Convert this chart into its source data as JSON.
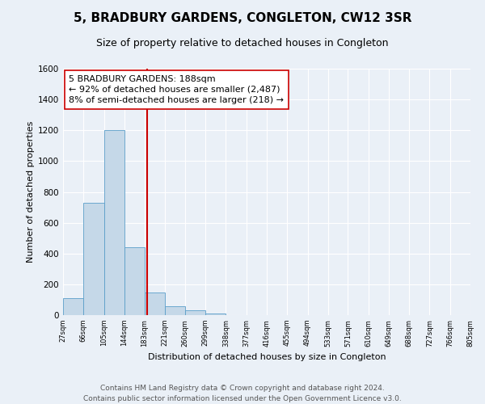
{
  "title": "5, BRADBURY GARDENS, CONGLETON, CW12 3SR",
  "subtitle": "Size of property relative to detached houses in Congleton",
  "xlabel": "Distribution of detached houses by size in Congleton",
  "ylabel": "Number of detached properties",
  "bin_edges": [
    27,
    66,
    105,
    144,
    183,
    221,
    260,
    299,
    338,
    377,
    416,
    455,
    494,
    533,
    571,
    610,
    649,
    688,
    727,
    766,
    805
  ],
  "bin_labels": [
    "27sqm",
    "66sqm",
    "105sqm",
    "144sqm",
    "183sqm",
    "221sqm",
    "260sqm",
    "299sqm",
    "338sqm",
    "377sqm",
    "416sqm",
    "455sqm",
    "494sqm",
    "533sqm",
    "571sqm",
    "610sqm",
    "649sqm",
    "688sqm",
    "727sqm",
    "766sqm",
    "805sqm"
  ],
  "bar_heights": [
    110,
    730,
    1200,
    440,
    145,
    60,
    30,
    10,
    0,
    0,
    0,
    0,
    0,
    0,
    0,
    0,
    0,
    0,
    0,
    0
  ],
  "bar_color": "#c5d8e8",
  "bar_edge_color": "#5a9ec9",
  "property_value": 188,
  "property_line_color": "#cc0000",
  "annotation_line1": "5 BRADBURY GARDENS: 188sqm",
  "annotation_line2": "← 92% of detached houses are smaller (2,487)",
  "annotation_line3": "8% of semi-detached houses are larger (218) →",
  "annotation_box_color": "#ffffff",
  "annotation_box_edge": "#cc0000",
  "ylim": [
    0,
    1600
  ],
  "yticks": [
    0,
    200,
    400,
    600,
    800,
    1000,
    1200,
    1400,
    1600
  ],
  "background_color": "#eaf0f7",
  "footer_line1": "Contains HM Land Registry data © Crown copyright and database right 2024.",
  "footer_line2": "Contains public sector information licensed under the Open Government Licence v3.0.",
  "title_fontsize": 11,
  "subtitle_fontsize": 9,
  "annotation_fontsize": 8,
  "footer_fontsize": 6.5,
  "ylabel_fontsize": 8,
  "xlabel_fontsize": 8
}
